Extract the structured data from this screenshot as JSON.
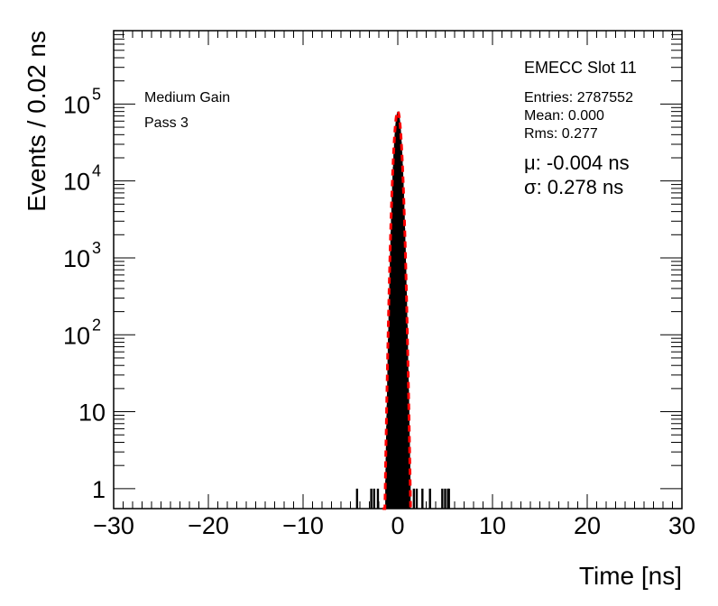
{
  "chart_data": {
    "type": "histogram",
    "xlabel": "Time [ns]",
    "ylabel": "Events / 0.02 ns",
    "xlim": [
      -30,
      30
    ],
    "ylim": [
      0.55,
      900000
    ],
    "log_y": true,
    "grid": false,
    "x_ticks": [
      {
        "value": -30,
        "label": "−30"
      },
      {
        "value": -20,
        "label": "−20"
      },
      {
        "value": -10,
        "label": "−10"
      },
      {
        "value": 0,
        "label": "0"
      },
      {
        "value": 10,
        "label": "10"
      },
      {
        "value": 20,
        "label": "20"
      },
      {
        "value": 30,
        "label": "30"
      }
    ],
    "y_ticks": [
      {
        "value": 1,
        "base": "1",
        "exp": ""
      },
      {
        "value": 10,
        "base": "10",
        "exp": ""
      },
      {
        "value": 100,
        "base": "10",
        "exp": "2"
      },
      {
        "value": 1000,
        "base": "10",
        "exp": "3"
      },
      {
        "value": 10000,
        "base": "10",
        "exp": "4"
      },
      {
        "value": 100000,
        "base": "10",
        "exp": "5"
      }
    ],
    "bin_width": 0.02,
    "histogram_core": {
      "mean": -0.004,
      "sigma": 0.278,
      "peak": 80000,
      "x_range": [
        -1.6,
        1.6
      ]
    },
    "isolated_entries": [
      {
        "x": -4.3,
        "y": 1
      },
      {
        "x": -2.8,
        "y": 1
      },
      {
        "x": -2.5,
        "y": 1
      },
      {
        "x": -2.1,
        "y": 1
      },
      {
        "x": 1.7,
        "y": 1
      },
      {
        "x": 2.0,
        "y": 1
      },
      {
        "x": 2.6,
        "y": 1
      },
      {
        "x": 3.4,
        "y": 1
      },
      {
        "x": 4.7,
        "y": 1
      },
      {
        "x": 5.0,
        "y": 1
      },
      {
        "x": 5.3,
        "y": 1
      },
      {
        "x": 5.4,
        "y": 1
      }
    ],
    "fit": {
      "type": "gaussian",
      "mean": -0.004,
      "sigma": 0.278,
      "amplitude": 80000,
      "x_range": [
        -1.6,
        1.6
      ],
      "color": "#ff0000"
    },
    "series": [
      {
        "values_color": "#000000"
      },
      {
        "values_color": "#ff0000"
      }
    ],
    "annotations": {
      "left_line1": "Medium Gain",
      "left_line2": "Pass 3",
      "title": "EMECC Slot 11",
      "entries": "Entries: 2787552",
      "mean": "Mean: 0.000",
      "rms": "Rms: 0.277",
      "mu": "μ: -0.004 ns",
      "sigma": "σ: 0.278 ns"
    }
  }
}
